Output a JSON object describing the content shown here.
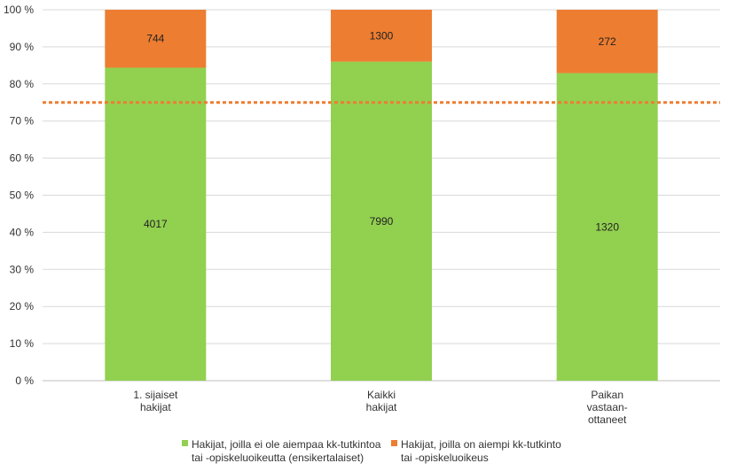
{
  "chart_data": {
    "type": "bar",
    "stacked": true,
    "normalized": true,
    "categories": [
      [
        "1. sijaiset",
        "hakijat"
      ],
      [
        "Kaikki",
        "hakijat"
      ],
      [
        "Paikan",
        "vastaan-",
        "ottaneet"
      ]
    ],
    "series": [
      {
        "name": [
          "Hakijat, joilla ei ole aiempaa kk-tutkintoa",
          "tai -opiskeluoikeutta (ensikertalaiset)"
        ],
        "values": [
          4017,
          7990,
          1320
        ],
        "color": "#92d050"
      },
      {
        "name": [
          "Hakijat, joilla on aiempi kk-tutkinto",
          "tai -opiskeluoikeus"
        ],
        "values": [
          744,
          1300,
          272
        ],
        "color": "#ed7d31"
      }
    ],
    "yticks": [
      "0 %",
      "10 %",
      "20 %",
      "30 %",
      "40 %",
      "50 %",
      "60 %",
      "70 %",
      "80 %",
      "90 %",
      "100 %"
    ],
    "ylim": [
      0,
      100
    ],
    "reference_line": {
      "value": 75,
      "color": "#ed7d31",
      "style": "dotted"
    },
    "gridlines": true,
    "legend_position": "bottom"
  }
}
